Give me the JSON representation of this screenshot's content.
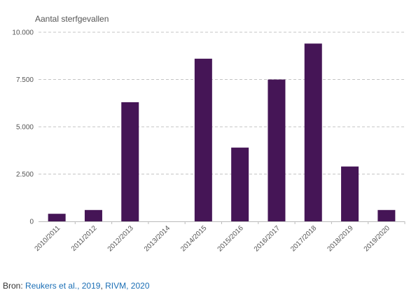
{
  "chart_data": {
    "type": "bar",
    "ylabel": "Aantal sterfgevallen",
    "categories": [
      "2010/2011",
      "2011/2012",
      "2012/2013",
      "2013/2014",
      "2014/2015",
      "2015/2016",
      "2016/2017",
      "2017/2018",
      "2018/2019",
      "2019/2020"
    ],
    "values": [
      400,
      600,
      6300,
      0,
      8600,
      3900,
      7500,
      9400,
      2900,
      600
    ],
    "ylim": [
      0,
      10000
    ],
    "yticks": [
      0,
      2500,
      5000,
      7500,
      10000
    ],
    "ytick_labels": [
      "0",
      "2.500",
      "5.000",
      "7.500",
      "10.000"
    ],
    "grid": "horizontal-dashed",
    "bar_color": "#451556"
  },
  "source": {
    "prefix": "Bron:",
    "reference_1": "Reukers et al., 2019",
    "separator": ",",
    "reference_2": "RIVM, 2020"
  }
}
